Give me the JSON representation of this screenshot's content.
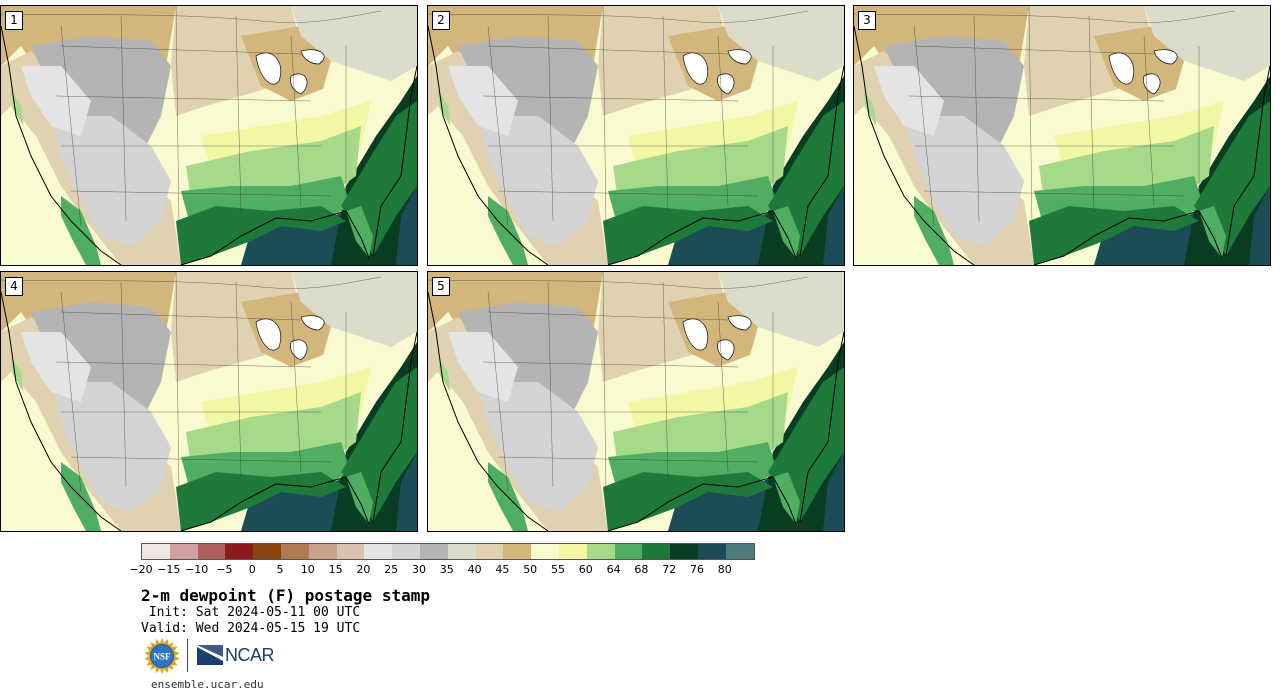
{
  "panels": [
    {
      "label": "1"
    },
    {
      "label": "2"
    },
    {
      "label": "3"
    },
    {
      "label": "4"
    },
    {
      "label": "5"
    }
  ],
  "colorbar": {
    "colors": [
      "#f1e5e5",
      "#d2a0a0",
      "#b05f5f",
      "#8c1a1a",
      "#8b4513",
      "#b07a55",
      "#c9a088",
      "#dcc0b0",
      "#e4e4e4",
      "#d4d4d4",
      "#b4b4b4",
      "#dcdccb",
      "#e0d2b0",
      "#d2b67c",
      "#fafad0",
      "#f2f7a4",
      "#a7d98a",
      "#4fae62",
      "#1d7a3a",
      "#083d22",
      "#1c4c56",
      "#4d7b7b"
    ],
    "ticks": [
      "−20",
      "−15",
      "−10",
      "−5",
      "0",
      "5",
      "10",
      "15",
      "20",
      "25",
      "30",
      "35",
      "40",
      "45",
      "50",
      "55",
      "60",
      "64",
      "68",
      "72",
      "76",
      "80"
    ]
  },
  "title": "2-m dewpoint (F) postage stamp",
  "init_line": " Init: Sat 2024-05-11 00 UTC",
  "valid_line": "Valid: Wed 2024-05-15 19 UTC",
  "logos": {
    "nsf": "NSF",
    "ncar": "NCAR"
  },
  "website": "ensemble.ucar.edu"
}
